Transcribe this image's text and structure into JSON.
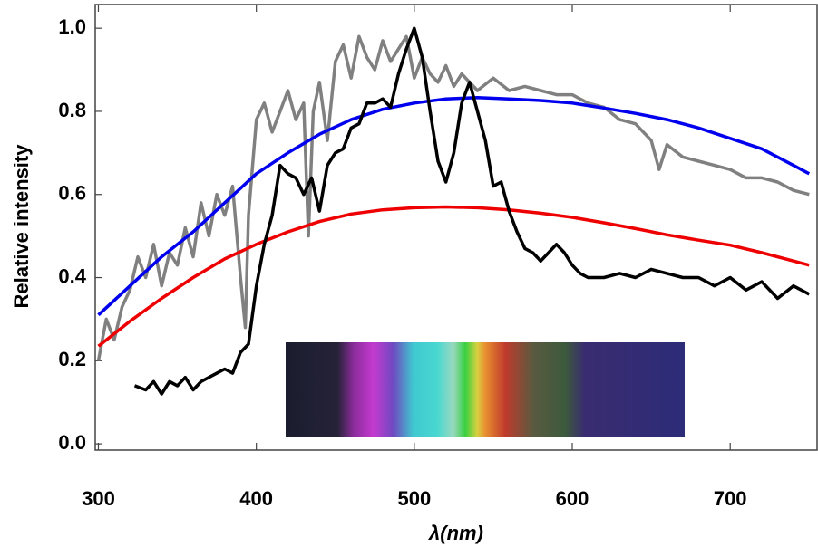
{
  "chart_data": {
    "type": "line",
    "xlabel": "λ(nm)",
    "ylabel": "Relative intensity",
    "xlim": [
      298,
      755
    ],
    "ylim": [
      -0.015,
      1.057
    ],
    "xticks": [
      300,
      400,
      500,
      600,
      700
    ],
    "yticks": [
      {
        "value": 0,
        "label": "0.0"
      },
      {
        "value": 0.2,
        "label": "0.2"
      },
      {
        "value": 0.4,
        "label": "0.4"
      },
      {
        "value": 0.6,
        "label": "0.6"
      },
      {
        "value": 0.8,
        "label": "0.8"
      },
      {
        "value": 1,
        "label": "1.0"
      }
    ],
    "series": [
      {
        "color": "#808080",
        "x": [
          300,
          305,
          310,
          315,
          320,
          325,
          330,
          335,
          340,
          345,
          350,
          355,
          360,
          365,
          370,
          375,
          380,
          385,
          390,
          393,
          395,
          400,
          405,
          410,
          415,
          420,
          425,
          430,
          433,
          436,
          440,
          445,
          450,
          455,
          460,
          465,
          470,
          475,
          480,
          485,
          490,
          495,
          500,
          505,
          510,
          515,
          520,
          525,
          530,
          540,
          550,
          560,
          570,
          580,
          590,
          600,
          610,
          620,
          630,
          640,
          650,
          655,
          660,
          670,
          680,
          690,
          700,
          710,
          720,
          730,
          740,
          750
        ],
        "values": [
          0.2,
          0.3,
          0.25,
          0.33,
          0.37,
          0.45,
          0.4,
          0.48,
          0.38,
          0.46,
          0.43,
          0.52,
          0.45,
          0.58,
          0.5,
          0.6,
          0.55,
          0.62,
          0.4,
          0.28,
          0.55,
          0.78,
          0.82,
          0.75,
          0.8,
          0.85,
          0.78,
          0.82,
          0.5,
          0.8,
          0.87,
          0.73,
          0.92,
          0.96,
          0.88,
          0.98,
          0.93,
          0.9,
          0.97,
          0.92,
          0.95,
          0.98,
          0.88,
          0.93,
          0.89,
          0.87,
          0.91,
          0.86,
          0.89,
          0.85,
          0.88,
          0.85,
          0.86,
          0.85,
          0.84,
          0.84,
          0.82,
          0.81,
          0.78,
          0.77,
          0.73,
          0.66,
          0.72,
          0.69,
          0.68,
          0.67,
          0.66,
          0.64,
          0.64,
          0.63,
          0.61,
          0.6
        ]
      },
      {
        "color": "#0000ee",
        "x": [
          300,
          320,
          340,
          360,
          380,
          400,
          420,
          440,
          460,
          480,
          500,
          520,
          540,
          560,
          580,
          600,
          620,
          640,
          660,
          680,
          700,
          720,
          740,
          750
        ],
        "values": [
          0.31,
          0.38,
          0.45,
          0.51,
          0.58,
          0.65,
          0.7,
          0.745,
          0.78,
          0.805,
          0.82,
          0.83,
          0.833,
          0.83,
          0.826,
          0.82,
          0.808,
          0.795,
          0.78,
          0.76,
          0.735,
          0.71,
          0.67,
          0.65
        ]
      },
      {
        "color": "#ee0000",
        "x": [
          300,
          320,
          340,
          360,
          380,
          400,
          420,
          440,
          460,
          480,
          500,
          520,
          540,
          560,
          580,
          600,
          620,
          640,
          660,
          680,
          700,
          720,
          740,
          750
        ],
        "values": [
          0.235,
          0.295,
          0.35,
          0.4,
          0.445,
          0.48,
          0.51,
          0.535,
          0.553,
          0.563,
          0.568,
          0.57,
          0.568,
          0.563,
          0.555,
          0.545,
          0.532,
          0.518,
          0.503,
          0.49,
          0.478,
          0.46,
          0.44,
          0.43
        ]
      },
      {
        "color": "#000000",
        "x": [
          323,
          330,
          335,
          340,
          345,
          350,
          355,
          360,
          365,
          370,
          375,
          380,
          385,
          390,
          395,
          400,
          405,
          410,
          415,
          420,
          425,
          430,
          435,
          440,
          445,
          450,
          455,
          460,
          465,
          470,
          475,
          480,
          485,
          490,
          495,
          500,
          505,
          510,
          515,
          520,
          525,
          530,
          535,
          540,
          545,
          550,
          555,
          560,
          565,
          570,
          575,
          580,
          585,
          590,
          595,
          600,
          605,
          610,
          620,
          630,
          640,
          650,
          660,
          670,
          680,
          690,
          700,
          710,
          720,
          730,
          740,
          750
        ],
        "values": [
          0.14,
          0.13,
          0.15,
          0.12,
          0.15,
          0.14,
          0.16,
          0.13,
          0.15,
          0.16,
          0.17,
          0.18,
          0.17,
          0.22,
          0.24,
          0.38,
          0.48,
          0.55,
          0.67,
          0.65,
          0.64,
          0.6,
          0.64,
          0.56,
          0.67,
          0.7,
          0.71,
          0.76,
          0.77,
          0.82,
          0.82,
          0.83,
          0.81,
          0.89,
          0.95,
          1.0,
          0.93,
          0.8,
          0.68,
          0.63,
          0.7,
          0.82,
          0.87,
          0.8,
          0.73,
          0.62,
          0.63,
          0.56,
          0.51,
          0.47,
          0.46,
          0.44,
          0.46,
          0.48,
          0.46,
          0.43,
          0.41,
          0.4,
          0.4,
          0.41,
          0.4,
          0.42,
          0.41,
          0.4,
          0.4,
          0.38,
          0.4,
          0.37,
          0.39,
          0.35,
          0.38,
          0.36
        ]
      }
    ]
  }
}
